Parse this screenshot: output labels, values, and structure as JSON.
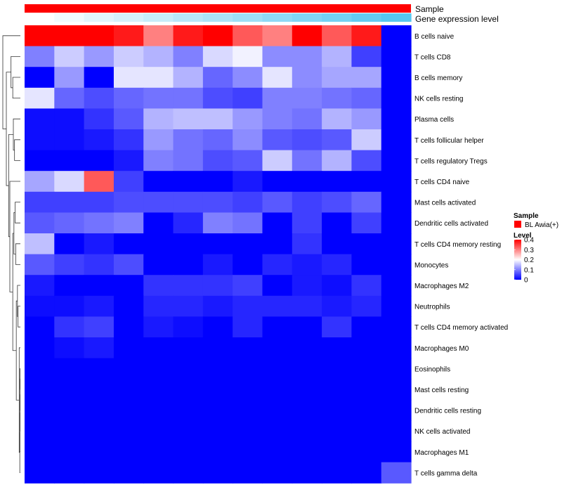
{
  "chart_data": {
    "type": "heatmap",
    "title": "",
    "xlabel": "",
    "ylabel": "",
    "rows": [
      "B cells naive",
      "T cells CD8",
      "B cells memory",
      "NK cells resting",
      "Plasma cells",
      "T cells follicular helper",
      "T cells regulatory  Tregs",
      "T cells CD4 naive",
      "Mast cells activated",
      "Dendritic cells activated",
      "T cells CD4 memory resting",
      "Monocytes",
      "Macrophages M2",
      "Neutrophils",
      "T cells CD4 memory activated",
      "Macrophages M0",
      "Eosinophils",
      "Mast cells resting",
      "Dendritic cells resting",
      "NK cells activated",
      "Macrophages M1",
      "T cells gamma delta"
    ],
    "columns": 13,
    "values": [
      [
        0.45,
        0.45,
        0.42,
        0.38,
        0.3,
        0.38,
        0.42,
        0.33,
        0.3,
        0.45,
        0.33,
        0.38,
        0.0
      ],
      [
        0.1,
        0.16,
        0.12,
        0.16,
        0.14,
        0.1,
        0.17,
        0.19,
        0.11,
        0.11,
        0.14,
        0.05,
        0.0
      ],
      [
        0.0,
        0.12,
        0.0,
        0.18,
        0.18,
        0.14,
        0.08,
        0.11,
        0.18,
        0.11,
        0.13,
        0.13,
        0.0
      ],
      [
        0.18,
        0.08,
        0.06,
        0.08,
        0.09,
        0.09,
        0.06,
        0.05,
        0.1,
        0.1,
        0.09,
        0.08,
        0.0
      ],
      [
        0.01,
        0.01,
        0.04,
        0.07,
        0.14,
        0.15,
        0.15,
        0.12,
        0.1,
        0.09,
        0.14,
        0.12,
        0.0
      ],
      [
        0.01,
        0.01,
        0.02,
        0.04,
        0.12,
        0.09,
        0.08,
        0.11,
        0.07,
        0.06,
        0.07,
        0.16,
        0.0
      ],
      [
        0.0,
        0.0,
        0.0,
        0.02,
        0.1,
        0.09,
        0.06,
        0.07,
        0.16,
        0.09,
        0.14,
        0.06,
        0.0
      ],
      [
        0.13,
        0.17,
        0.33,
        0.05,
        0.0,
        0.0,
        0.0,
        0.02,
        0.0,
        0.0,
        0.0,
        0.0,
        0.0
      ],
      [
        0.05,
        0.05,
        0.05,
        0.06,
        0.06,
        0.06,
        0.06,
        0.05,
        0.07,
        0.05,
        0.06,
        0.08,
        0.0
      ],
      [
        0.07,
        0.08,
        0.09,
        0.1,
        0.0,
        0.03,
        0.1,
        0.09,
        0.0,
        0.05,
        0.0,
        0.05,
        0.0
      ],
      [
        0.15,
        0.0,
        0.02,
        0.0,
        0.0,
        0.0,
        0.0,
        0.0,
        0.0,
        0.04,
        0.0,
        0.0,
        0.0
      ],
      [
        0.07,
        0.05,
        0.04,
        0.06,
        0.0,
        0.0,
        0.02,
        0.0,
        0.03,
        0.02,
        0.03,
        0.0,
        0.0
      ],
      [
        0.02,
        0.0,
        0.0,
        0.0,
        0.04,
        0.04,
        0.04,
        0.05,
        0.0,
        0.02,
        0.01,
        0.04,
        0.0
      ],
      [
        0.01,
        0.01,
        0.02,
        0.0,
        0.03,
        0.03,
        0.02,
        0.03,
        0.03,
        0.03,
        0.02,
        0.03,
        0.0
      ],
      [
        0.0,
        0.04,
        0.05,
        0.0,
        0.02,
        0.01,
        0.0,
        0.03,
        0.0,
        0.0,
        0.04,
        0.0,
        0.0
      ],
      [
        0.0,
        0.01,
        0.02,
        0.0,
        0.0,
        0.0,
        0.0,
        0.0,
        0.0,
        0.0,
        0.0,
        0.0,
        0.0
      ],
      [
        0.0,
        0.0,
        0.0,
        0.0,
        0.0,
        0.0,
        0.0,
        0.0,
        0.0,
        0.0,
        0.0,
        0.0,
        0.0
      ],
      [
        0.0,
        0.0,
        0.0,
        0.0,
        0.0,
        0.0,
        0.0,
        0.0,
        0.0,
        0.0,
        0.0,
        0.0,
        0.0
      ],
      [
        0.0,
        0.0,
        0.0,
        0.0,
        0.0,
        0.0,
        0.0,
        0.0,
        0.0,
        0.0,
        0.0,
        0.0,
        0.0
      ],
      [
        0.0,
        0.0,
        0.0,
        0.0,
        0.0,
        0.0,
        0.0,
        0.0,
        0.0,
        0.0,
        0.0,
        0.0,
        0.0
      ],
      [
        0.0,
        0.0,
        0.0,
        0.0,
        0.0,
        0.0,
        0.0,
        0.0,
        0.0,
        0.0,
        0.0,
        0.0,
        0.0
      ],
      [
        0.0,
        0.0,
        0.0,
        0.0,
        0.0,
        0.0,
        0.0,
        0.0,
        0.0,
        0.0,
        0.0,
        0.0,
        0.07
      ]
    ],
    "color_scale": {
      "min": 0,
      "max": 0.4,
      "stops": [
        {
          "value": 0,
          "color": "#0000ff"
        },
        {
          "value": 0.2,
          "color": "#ffffff"
        },
        {
          "value": 0.4,
          "color": "#ff0000"
        }
      ]
    },
    "annotations": {
      "sample_track": {
        "label": "Sample",
        "color": "#ff0000"
      },
      "expression_track": {
        "label": "Gene expression level",
        "values": [
          0.0,
          0.08,
          0.17,
          0.25,
          0.33,
          0.42,
          0.5,
          0.58,
          0.67,
          0.75,
          0.83,
          0.92,
          1.0
        ],
        "color_low": "#ffffff",
        "color_high": "#56c7f0"
      }
    },
    "legend": {
      "position": "right",
      "sample_title": "Sample",
      "sample_entry": "BL Awia(+)",
      "level_title": "Level",
      "level_ticks": [
        0.4,
        0.3,
        0.2,
        0.1,
        0
      ]
    },
    "dendrogram": {
      "position": "left",
      "leaf_order": [
        0,
        1,
        2,
        3,
        4,
        5,
        6,
        7,
        8,
        9,
        10,
        11,
        12,
        13,
        14,
        15,
        16,
        17,
        18,
        19,
        20,
        21
      ],
      "merges": [
        [
          16,
          17,
          0.005
        ],
        [
          -1,
          18,
          0.006
        ],
        [
          -2,
          19,
          0.007
        ],
        [
          -3,
          20,
          0.008
        ],
        [
          -4,
          21,
          0.01
        ],
        [
          15,
          -5,
          0.02
        ],
        [
          13,
          14,
          0.04
        ],
        [
          12,
          -7,
          0.05
        ],
        [
          -8,
          -6,
          0.07
        ],
        [
          10,
          11,
          0.08
        ],
        [
          8,
          9,
          0.09
        ],
        [
          -11,
          -10,
          0.11
        ],
        [
          -12,
          -9,
          0.13
        ],
        [
          5,
          6,
          0.1
        ],
        [
          4,
          -14,
          0.12
        ],
        [
          2,
          3,
          0.13
        ],
        [
          1,
          -16,
          0.16
        ],
        [
          7,
          -13,
          0.18
        ],
        [
          -15,
          -18,
          0.2
        ],
        [
          -17,
          -19,
          0.24
        ],
        [
          0,
          -20,
          0.3
        ]
      ]
    }
  }
}
